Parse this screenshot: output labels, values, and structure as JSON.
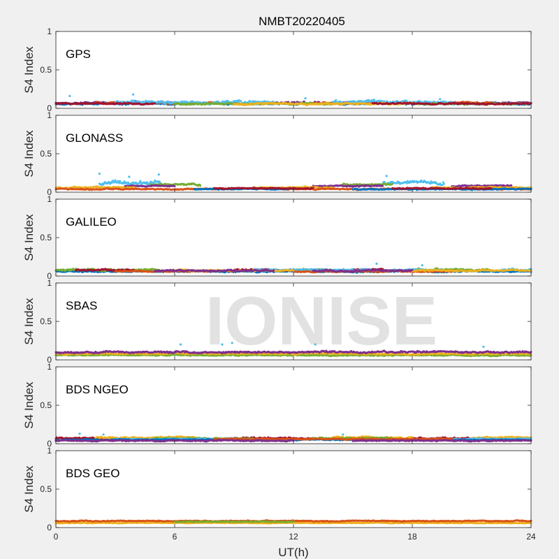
{
  "figure": {
    "title": "NMBT20220405",
    "xlabel": "UT(h)",
    "watermark": "IONISE"
  },
  "chart_data": {
    "type": "scatter",
    "title": "NMBT20220405",
    "xlabel": "UT(h)",
    "ylabel": "S4 Index",
    "xlim": [
      0,
      24
    ],
    "ylim": [
      0,
      1
    ],
    "xticks": [
      "0",
      "6",
      "12",
      "18",
      "24"
    ],
    "yticks": [
      "0",
      "0.5",
      "1"
    ],
    "grid": false,
    "series_colors": [
      "#0072BD",
      "#D95319",
      "#EDB120",
      "#7E2F8E",
      "#77AC30",
      "#4DBEEE",
      "#A2142F"
    ],
    "panels": [
      {
        "label": "GPS",
        "traces": [
          {
            "color": "#7E2F8E",
            "base": 0.07,
            "noise": 0.018,
            "segs": [
              [
                0,
                6
              ],
              [
                10,
                16
              ],
              [
                20,
                24
              ]
            ]
          },
          {
            "color": "#0072BD",
            "base": 0.06,
            "noise": 0.015,
            "segs": [
              [
                0,
                24
              ]
            ]
          },
          {
            "color": "#D95319",
            "base": 0.07,
            "noise": 0.015,
            "segs": [
              [
                2,
                9
              ],
              [
                13,
                22
              ]
            ]
          },
          {
            "color": "#4DBEEE",
            "base": 0.08,
            "noise": 0.025,
            "segs": [
              [
                3,
                11
              ],
              [
                14,
                20
              ]
            ]
          },
          {
            "color": "#77AC30",
            "base": 0.06,
            "noise": 0.015,
            "segs": [
              [
                6,
                14
              ],
              [
                18,
                24
              ]
            ]
          },
          {
            "color": "#EDB120",
            "base": 0.06,
            "noise": 0.015,
            "segs": [
              [
                9,
                18
              ]
            ]
          },
          {
            "color": "#A2142F",
            "base": 0.06,
            "noise": 0.012,
            "segs": [
              [
                0,
                5
              ],
              [
                16,
                24
              ]
            ]
          }
        ],
        "spikes": [
          [
            3.9,
            0.18
          ],
          [
            0.7,
            0.16
          ],
          [
            12.6,
            0.13
          ],
          [
            19.4,
            0.12
          ]
        ]
      },
      {
        "label": "GLONASS",
        "traces": [
          {
            "color": "#4DBEEE",
            "base": 0.12,
            "noise": 0.03,
            "segs": [
              [
                2.2,
                5.3
              ],
              [
                16.5,
                19.6
              ]
            ]
          },
          {
            "color": "#77AC30",
            "base": 0.1,
            "noise": 0.015,
            "segs": [
              [
                4.8,
                7.3
              ],
              [
                14.5,
                17
              ]
            ]
          },
          {
            "color": "#7E2F8E",
            "base": 0.08,
            "noise": 0.012,
            "segs": [
              [
                3.5,
                6
              ],
              [
                13,
                16.5
              ],
              [
                20,
                23
              ]
            ]
          },
          {
            "color": "#EDB120",
            "base": 0.06,
            "noise": 0.012,
            "segs": [
              [
                0,
                4
              ],
              [
                10,
                14
              ],
              [
                19,
                24
              ]
            ]
          },
          {
            "color": "#D95319",
            "base": 0.04,
            "noise": 0.01,
            "segs": [
              [
                0,
                9
              ],
              [
                11,
                18
              ],
              [
                21,
                24
              ]
            ]
          },
          {
            "color": "#0072BD",
            "base": 0.04,
            "noise": 0.01,
            "segs": [
              [
                7,
                12
              ],
              [
                15,
                24
              ]
            ]
          },
          {
            "color": "#A2142F",
            "base": 0.05,
            "noise": 0.01,
            "segs": [
              [
                8,
                13
              ],
              [
                17,
                22
              ]
            ]
          }
        ],
        "spikes": [
          [
            2.2,
            0.24
          ],
          [
            5.2,
            0.23
          ],
          [
            16.7,
            0.21
          ],
          [
            3.7,
            0.2
          ]
        ]
      },
      {
        "label": "GALILEO",
        "traces": [
          {
            "color": "#0072BD",
            "base": 0.06,
            "noise": 0.012,
            "segs": [
              [
                0,
                24
              ]
            ]
          },
          {
            "color": "#77AC30",
            "base": 0.08,
            "noise": 0.018,
            "segs": [
              [
                0,
                5.2
              ],
              [
                12,
                14
              ],
              [
                18,
                22
              ]
            ]
          },
          {
            "color": "#A2142F",
            "base": 0.08,
            "noise": 0.015,
            "segs": [
              [
                1,
                4
              ],
              [
                9,
                12
              ],
              [
                15,
                16.5
              ]
            ]
          },
          {
            "color": "#4DBEEE",
            "base": 0.08,
            "noise": 0.015,
            "segs": [
              [
                10,
                16
              ],
              [
                17,
                19.5
              ],
              [
                22.5,
                24
              ]
            ]
          },
          {
            "color": "#D95319",
            "base": 0.06,
            "noise": 0.01,
            "segs": [
              [
                3,
                9
              ],
              [
                12,
                20
              ]
            ]
          },
          {
            "color": "#EDB120",
            "base": 0.07,
            "noise": 0.012,
            "segs": [
              [
                6,
                12
              ],
              [
                18,
                24
              ]
            ]
          },
          {
            "color": "#7E2F8E",
            "base": 0.07,
            "noise": 0.012,
            "segs": [
              [
                5,
                11
              ],
              [
                13,
                18
              ]
            ]
          }
        ],
        "spikes": [
          [
            16.2,
            0.16
          ],
          [
            18.5,
            0.14
          ]
        ]
      },
      {
        "label": "SBAS",
        "traces": [
          {
            "color": "#77AC30",
            "base": 0.06,
            "noise": 0.01,
            "segs": [
              [
                0,
                24
              ]
            ]
          },
          {
            "color": "#EDB120",
            "base": 0.08,
            "noise": 0.012,
            "segs": [
              [
                0,
                24
              ]
            ]
          },
          {
            "color": "#7E2F8E",
            "base": 0.1,
            "noise": 0.015,
            "segs": [
              [
                0,
                24
              ]
            ]
          }
        ],
        "spikes": [
          [
            6.3,
            0.2
          ],
          [
            8.4,
            0.2
          ],
          [
            8.9,
            0.22
          ],
          [
            13.1,
            0.2
          ],
          [
            21.6,
            0.17
          ]
        ]
      },
      {
        "label": "BDS NGEO",
        "traces": [
          {
            "color": "#A2142F",
            "base": 0.07,
            "noise": 0.015,
            "segs": [
              [
                0,
                4
              ],
              [
                9,
                13
              ],
              [
                18,
                21
              ]
            ]
          },
          {
            "color": "#EDB120",
            "base": 0.08,
            "noise": 0.015,
            "segs": [
              [
                2,
                7
              ],
              [
                14,
                18
              ],
              [
                21,
                24
              ]
            ]
          },
          {
            "color": "#77AC30",
            "base": 0.07,
            "noise": 0.012,
            "segs": [
              [
                5,
                10
              ],
              [
                13,
                17
              ]
            ]
          },
          {
            "color": "#4DBEEE",
            "base": 0.06,
            "noise": 0.01,
            "segs": [
              [
                3,
                9
              ],
              [
                19,
                24
              ]
            ]
          },
          {
            "color": "#0072BD",
            "base": 0.05,
            "noise": 0.01,
            "segs": [
              [
                0,
                24
              ]
            ]
          },
          {
            "color": "#D95319",
            "base": 0.06,
            "noise": 0.01,
            "segs": [
              [
                8,
                20
              ]
            ]
          },
          {
            "color": "#7E2F8E",
            "base": 0.04,
            "noise": 0.01,
            "segs": [
              [
                0,
                12
              ],
              [
                15,
                24
              ]
            ]
          }
        ],
        "spikes": [
          [
            1.2,
            0.13
          ],
          [
            2.4,
            0.12
          ],
          [
            14.5,
            0.12
          ]
        ]
      },
      {
        "label": "BDS GEO",
        "traces": [
          {
            "color": "#EDB120",
            "base": 0.06,
            "noise": 0.006,
            "segs": [
              [
                0,
                24
              ]
            ]
          },
          {
            "color": "#D95319",
            "base": 0.085,
            "noise": 0.008,
            "segs": [
              [
                0,
                24
              ]
            ]
          },
          {
            "color": "#77AC30",
            "base": 0.075,
            "noise": 0.006,
            "segs": [
              [
                6,
                12
              ]
            ]
          }
        ],
        "spikes": []
      }
    ]
  }
}
